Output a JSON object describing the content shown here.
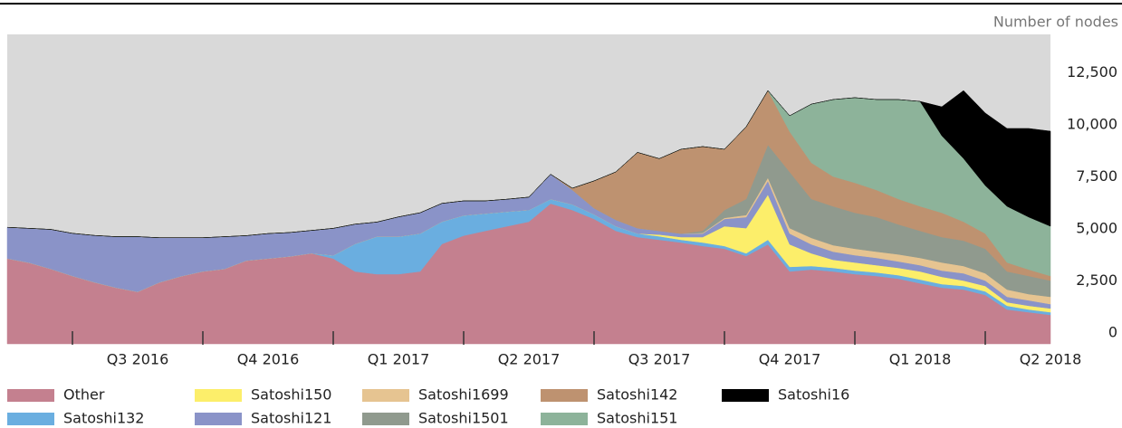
{
  "chart_data": {
    "type": "stacked_area",
    "y_label": "Number of nodes",
    "categories": [
      null,
      null,
      null,
      null,
      null,
      null,
      "Q3 2016",
      null,
      null,
      null,
      null,
      null,
      "Q4 2016",
      null,
      null,
      null,
      null,
      null,
      "Q1 2017",
      null,
      null,
      null,
      null,
      null,
      "Q2 2017",
      null,
      null,
      null,
      null,
      null,
      "Q3 2017",
      null,
      null,
      null,
      null,
      null,
      "Q4 2017",
      null,
      null,
      null,
      null,
      null,
      "Q1 2018",
      null,
      null,
      null,
      null,
      null,
      "Q2 2018"
    ],
    "ylim": [
      0,
      14870
    ],
    "yticks": [
      0,
      {
        "value": 2500,
        "label": "2,500"
      },
      {
        "value": 5000,
        "label": "5,000"
      },
      {
        "value": 7500,
        "label": "7,500"
      },
      {
        "value": 10000,
        "label": "10,000"
      },
      {
        "value": 12500,
        "label": "12,500"
      }
    ],
    "grid": false,
    "series": [
      {
        "name": "Other",
        "color": "#c4808f",
        "values": [
          4100,
          3900,
          3600,
          3260,
          2960,
          2700,
          2500,
          2950,
          3250,
          3480,
          3600,
          4000,
          4100,
          4200,
          4350,
          4100,
          3480,
          3350,
          3350,
          3480,
          4800,
          5200,
          5430,
          5650,
          5870,
          6740,
          6430,
          6000,
          5430,
          5130,
          5000,
          4870,
          4700,
          4570,
          4220,
          4780,
          3480,
          3570,
          3480,
          3350,
          3260,
          3130,
          2910,
          2700,
          2610,
          2350,
          1650,
          1520,
          1390
        ]
      },
      {
        "name": "Satoshi132",
        "color": "#6aaee0",
        "values": [
          0,
          0,
          0,
          0,
          0,
          0,
          0,
          0,
          0,
          0,
          0,
          0,
          0,
          0,
          0,
          150,
          1320,
          1800,
          1800,
          1820,
          1070,
          970,
          830,
          700,
          560,
          210,
          270,
          220,
          220,
          170,
          170,
          130,
          170,
          130,
          130,
          220,
          220,
          170,
          170,
          170,
          170,
          170,
          180,
          170,
          170,
          170,
          180,
          130,
          130
        ]
      },
      {
        "name": "Satoshi150",
        "color": "#fcee6a",
        "values": [
          0,
          0,
          0,
          0,
          0,
          0,
          0,
          0,
          0,
          0,
          0,
          0,
          0,
          0,
          0,
          0,
          0,
          0,
          0,
          0,
          0,
          0,
          0,
          0,
          0,
          0,
          0,
          0,
          0,
          0,
          80,
          130,
          260,
          950,
          1210,
          2170,
          1080,
          610,
          390,
          390,
          350,
          350,
          390,
          350,
          260,
          260,
          170,
          180,
          180
        ]
      },
      {
        "name": "Satoshi121",
        "color": "#8a93c8",
        "values": [
          1500,
          1650,
          1900,
          2050,
          2250,
          2450,
          2650,
          2150,
          1850,
          1620,
          1550,
          1200,
          1200,
          1150,
          1100,
          1300,
          950,
          700,
          950,
          1000,
          880,
          700,
          610,
          600,
          620,
          1200,
          700,
          300,
          310,
          260,
          180,
          170,
          170,
          350,
          530,
          660,
          520,
          430,
          390,
          350,
          350,
          310,
          300,
          300,
          350,
          260,
          260,
          260,
          210
        ]
      },
      {
        "name": "Satoshi1699",
        "color": "#e6c491",
        "values": [
          0,
          0,
          0,
          0,
          0,
          0,
          0,
          0,
          0,
          0,
          0,
          0,
          0,
          0,
          0,
          0,
          0,
          0,
          0,
          0,
          0,
          0,
          0,
          0,
          0,
          0,
          0,
          0,
          0,
          0,
          0,
          0,
          30,
          50,
          100,
          150,
          260,
          310,
          310,
          310,
          300,
          340,
          350,
          390,
          350,
          350,
          350,
          300,
          350
        ]
      },
      {
        "name": "Satoshi1501",
        "color": "#909a8e",
        "values": [
          0,
          0,
          0,
          0,
          0,
          0,
          0,
          0,
          0,
          0,
          0,
          0,
          0,
          0,
          0,
          0,
          0,
          0,
          0,
          0,
          0,
          0,
          0,
          0,
          0,
          0,
          0,
          0,
          0,
          0,
          0,
          0,
          100,
          380,
          770,
          1580,
          2700,
          1870,
          1870,
          1730,
          1660,
          1440,
          1300,
          1220,
          1220,
          1180,
          870,
          870,
          780
        ]
      },
      {
        "name": "Satoshi142",
        "color": "#be9270",
        "values": [
          0,
          0,
          0,
          0,
          0,
          0,
          0,
          0,
          0,
          0,
          0,
          0,
          0,
          0,
          0,
          0,
          0,
          0,
          0,
          0,
          0,
          0,
          0,
          0,
          0,
          0,
          80,
          1310,
          2300,
          3640,
          3470,
          4050,
          4050,
          2920,
          3470,
          2610,
          1940,
          1740,
          1430,
          1440,
          1300,
          1220,
          1180,
          1170,
          910,
          730,
          430,
          310,
          220
        ]
      },
      {
        "name": "Satoshi151",
        "color": "#8db39a",
        "values": [
          0,
          0,
          0,
          0,
          0,
          0,
          0,
          0,
          0,
          0,
          0,
          0,
          0,
          0,
          0,
          0,
          0,
          0,
          0,
          0,
          0,
          0,
          0,
          0,
          0,
          0,
          0,
          0,
          0,
          0,
          0,
          0,
          0,
          0,
          0,
          0,
          760,
          2820,
          3700,
          4090,
          4350,
          4780,
          5040,
          3700,
          3040,
          2310,
          2700,
          2520,
          2390
        ]
      },
      {
        "name": "Satoshi16",
        "color": "#000000",
        "values": [
          0,
          0,
          0,
          0,
          0,
          0,
          0,
          0,
          0,
          0,
          0,
          0,
          0,
          0,
          0,
          0,
          0,
          0,
          0,
          0,
          0,
          0,
          0,
          0,
          0,
          0,
          0,
          0,
          0,
          0,
          0,
          0,
          0,
          0,
          0,
          0,
          0,
          0,
          0,
          0,
          0,
          0,
          0,
          1390,
          3260,
          3480,
          3740,
          4260,
          4570
        ]
      }
    ]
  }
}
